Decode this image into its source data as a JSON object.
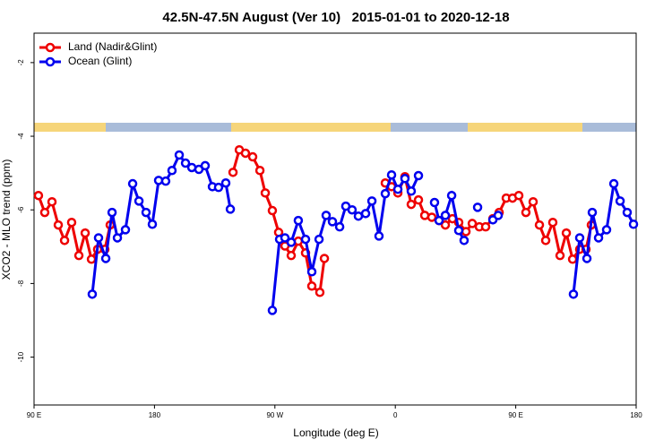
{
  "chart_data": {
    "type": "line",
    "title": "42.5N-47.5N August (Ver 10)   2015-01-01 to 2020-12-18",
    "x_label": "Longitude (deg E)",
    "y_label": "XCO2 - MLO trend (ppm)",
    "xlim": [
      90,
      540
    ],
    "ylim": [
      -11.3,
      -1.2
    ],
    "xticks": [
      {
        "value": 90,
        "label": "90 E"
      },
      180,
      {
        "value": 270,
        "label": "90 W"
      },
      {
        "value": 360,
        "label": "0"
      },
      {
        "value": 450,
        "label": "90 E"
      },
      {
        "value": 540,
        "label": "180"
      }
    ],
    "yticks": [
      -10,
      -8,
      -6,
      -4,
      -2
    ],
    "legend": "top-left",
    "series": [
      {
        "name": "Land (Nadir&Glint)",
        "color": "#ee0000",
        "x": [
          93.3,
          98.0,
          103.4,
          108.1,
          112.8,
          118.1,
          123.5,
          128.2,
          132.9,
          137.5,
          142.9,
          146.9,
          null,
          238.7,
          243.4,
          248.0,
          253.4,
          258.8,
          262.8,
          268.1,
          272.8,
          277.5,
          282.2,
          287.5,
          292.9,
          297.6,
          303.6,
          307.0,
          null,
          352.5,
          357.2,
          361.9,
          367.2,
          371.9,
          377.3,
          382.0,
          387.3,
          392.7,
          397.4,
          402.7,
          407.4,
          412.8,
          417.5,
          422.8,
          427.5,
          432.9,
          437.6,
          442.9,
          447.6,
          452.3,
          457.6,
          463.0,
          467.7,
          472.4,
          477.7,
          483.1,
          487.8,
          492.5,
          497.8,
          502.5,
          506.5
        ],
        "values": [
          -5.61,
          -6.07,
          -5.78,
          -6.41,
          -6.83,
          -6.34,
          -7.24,
          -6.63,
          -7.34,
          -7.07,
          -7.07,
          -6.41,
          null,
          -4.98,
          -4.37,
          -4.46,
          -4.56,
          -4.93,
          -5.54,
          -6.02,
          -6.61,
          -6.98,
          -7.24,
          -6.85,
          -7.17,
          -8.07,
          -8.24,
          -7.32,
          null,
          -5.27,
          -5.37,
          -5.54,
          -5.1,
          -5.85,
          -5.73,
          -6.15,
          -6.2,
          -6.29,
          -6.41,
          -6.24,
          -6.34,
          -6.59,
          -6.37,
          -6.46,
          -6.46,
          -6.24,
          -6.07,
          -5.68,
          -5.68,
          -5.61,
          -6.07,
          -5.78,
          -6.41,
          -6.83,
          -6.34,
          -7.24,
          -6.63,
          -7.34,
          -7.07,
          -7.07,
          -6.41
        ]
      },
      {
        "name": "Ocean (Glint)",
        "color": "#0000ee",
        "x": [
          133.5,
          138.2,
          143.6,
          148.3,
          152.3,
          158.3,
          163.7,
          168.4,
          173.7,
          178.4,
          183.1,
          188.4,
          193.1,
          198.5,
          203.2,
          207.9,
          213.2,
          217.9,
          223.3,
          227.9,
          233.3,
          236.7,
          null,
          268.1,
          273.5,
          277.5,
          282.2,
          287.5,
          292.9,
          297.6,
          303.0,
          308.3,
          313.0,
          318.4,
          323.0,
          327.7,
          332.4,
          337.8,
          342.5,
          347.8,
          352.5,
          357.2,
          361.9,
          367.2,
          371.9,
          377.3,
          null,
          389.3,
          392.7,
          397.4,
          402.1,
          407.4,
          411.4,
          null,
          421.5,
          null,
          432.9,
          436.9,
          null,
          493.1,
          497.8,
          503.2,
          507.2,
          511.9,
          517.9,
          523.3,
          528.0,
          533.3,
          538.0
        ],
        "values": [
          -8.29,
          -6.76,
          -7.32,
          -6.07,
          -6.76,
          -6.54,
          -5.29,
          -5.76,
          -6.07,
          -6.39,
          -5.2,
          -5.22,
          -4.93,
          -4.51,
          -4.73,
          -4.85,
          -4.9,
          -4.8,
          -5.37,
          -5.39,
          -5.27,
          -5.98,
          null,
          -8.73,
          -6.8,
          -6.76,
          -6.88,
          -6.29,
          -6.8,
          -7.68,
          -6.8,
          -6.15,
          -6.32,
          -6.46,
          -5.9,
          -6.0,
          -6.17,
          -6.1,
          -5.76,
          -6.71,
          -5.56,
          -5.05,
          -5.44,
          -5.15,
          -5.49,
          -5.07,
          null,
          -5.8,
          -6.29,
          -6.15,
          -5.61,
          -6.56,
          -6.83,
          null,
          -5.93,
          null,
          -6.27,
          -6.15,
          null,
          -8.29,
          -6.76,
          -7.32,
          -6.07,
          -6.76,
          -6.54,
          -5.29,
          -5.76,
          -6.07,
          -6.39
        ]
      }
    ]
  }
}
